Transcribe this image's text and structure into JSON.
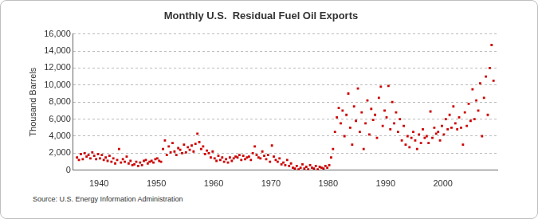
{
  "chart_data": {
    "type": "scatter",
    "title": "Monthly U.S.  Residual Fuel Oil Exports",
    "y_label": "Thousand Barrels",
    "source": "Source: U.S. Energy Information Administration",
    "color": "#cc0000",
    "marker": "square",
    "grid": true,
    "xlim": [
      1935.5,
      2009.5
    ],
    "xticks": [
      1940,
      1950,
      1960,
      1970,
      1980,
      1990,
      2000
    ],
    "ylim": [
      0,
      16000
    ],
    "yticks": [
      0,
      {
        "value": 2000,
        "label": "2,000"
      },
      {
        "value": 4000,
        "label": "4,000"
      },
      {
        "value": 6000,
        "label": "6,000"
      },
      {
        "value": 8000,
        "label": "8,000"
      },
      {
        "value": 10000,
        "label": "10,000"
      },
      {
        "value": 12000,
        "label": "12,000"
      },
      {
        "value": 14000,
        "label": "14,000"
      },
      {
        "value": 16000,
        "label": "16,000"
      }
    ],
    "x": [
      1936.17,
      1936.5,
      1936.83,
      1937.17,
      1937.5,
      1937.83,
      1938.17,
      1938.5,
      1938.83,
      1939.17,
      1939.5,
      1939.83,
      1940.17,
      1940.5,
      1940.83,
      1941.17,
      1941.5,
      1941.83,
      1942.17,
      1942.5,
      1942.83,
      1943.17,
      1943.5,
      1943.83,
      1944.17,
      1944.5,
      1944.83,
      1945.17,
      1945.5,
      1945.83,
      1946.17,
      1946.5,
      1946.83,
      1947.17,
      1947.5,
      1947.83,
      1948.17,
      1948.5,
      1948.83,
      1949.17,
      1949.5,
      1949.83,
      1950.17,
      1950.5,
      1950.83,
      1951.17,
      1951.5,
      1951.83,
      1952.17,
      1952.5,
      1952.83,
      1953.17,
      1953.5,
      1953.83,
      1954.17,
      1954.5,
      1954.83,
      1955.17,
      1955.5,
      1955.83,
      1956.17,
      1956.5,
      1956.83,
      1957.17,
      1957.5,
      1957.83,
      1958.17,
      1958.5,
      1958.83,
      1959.17,
      1959.5,
      1959.83,
      1960.17,
      1960.5,
      1960.83,
      1961.17,
      1961.5,
      1961.83,
      1962.17,
      1962.5,
      1962.83,
      1963.17,
      1963.5,
      1963.83,
      1964.17,
      1964.5,
      1964.83,
      1965.17,
      1965.5,
      1965.83,
      1966.17,
      1966.5,
      1966.83,
      1967.17,
      1967.5,
      1967.83,
      1968.17,
      1968.5,
      1968.83,
      1969.17,
      1969.5,
      1969.83,
      1970.17,
      1970.5,
      1970.83,
      1971.17,
      1971.5,
      1971.83,
      1972.17,
      1972.5,
      1972.83,
      1973.17,
      1973.5,
      1973.83,
      1974.17,
      1974.5,
      1974.83,
      1975.17,
      1975.5,
      1975.83,
      1976.17,
      1976.5,
      1976.83,
      1977.17,
      1977.5,
      1977.83,
      1978.17,
      1978.5,
      1978.83,
      1979.17,
      1979.5,
      1979.83,
      1980.17,
      1980.5,
      1980.83,
      1981.17,
      1981.5,
      1981.83,
      1982.17,
      1982.5,
      1982.83,
      1983.17,
      1983.5,
      1983.83,
      1984.17,
      1984.5,
      1984.83,
      1985.17,
      1985.5,
      1985.83,
      1986.17,
      1986.5,
      1986.83,
      1987.17,
      1987.5,
      1987.83,
      1988.17,
      1988.5,
      1988.83,
      1989.17,
      1989.5,
      1989.83,
      1990.17,
      1990.5,
      1990.83,
      1991.17,
      1991.5,
      1991.83,
      1992.17,
      1992.5,
      1992.83,
      1993.17,
      1993.5,
      1993.83,
      1994.17,
      1994.5,
      1994.83,
      1995.17,
      1995.5,
      1995.83,
      1996.17,
      1996.5,
      1996.83,
      1997.17,
      1997.5,
      1997.83,
      1998.17,
      1998.5,
      1998.83,
      1999.17,
      1999.5,
      1999.83,
      2000.17,
      2000.5,
      2000.83,
      2001.17,
      2001.5,
      2001.83,
      2002.17,
      2002.5,
      2002.83,
      2003.17,
      2003.5,
      2003.83,
      2004.17,
      2004.5,
      2004.83,
      2005.17,
      2005.5,
      2005.83,
      2006.17,
      2006.5,
      2006.83,
      2007.17,
      2007.5,
      2007.83,
      2008.17,
      2008.5,
      2008.83
    ],
    "values": [
      1500,
      1200,
      1900,
      1300,
      2000,
      1600,
      1800,
      1400,
      2100,
      1700,
      1300,
      1900,
      1400,
      1800,
      1200,
      1500,
      1100,
      1700,
      1000,
      1400,
      800,
      1200,
      2500,
      900,
      1300,
      1000,
      1600,
      800,
      1100,
      600,
      700,
      1000,
      500,
      900,
      600,
      1100,
      1200,
      800,
      1000,
      1100,
      900,
      1300,
      1400,
      1100,
      1000,
      2500,
      3500,
      1800,
      2800,
      2100,
      3200,
      2200,
      1800,
      2600,
      2400,
      2000,
      3000,
      2100,
      2700,
      2400,
      2900,
      2200,
      3100,
      4300,
      3300,
      2500,
      2800,
      1900,
      2300,
      2000,
      1500,
      2200,
      1400,
      1100,
      1700,
      1200,
      1500,
      1000,
      1300,
      900,
      1500,
      1100,
      1400,
      1600,
      1500,
      1800,
      1200,
      1700,
      1300,
      1500,
      1600,
      1200,
      2000,
      2800,
      1800,
      1500,
      1400,
      2200,
      1700,
      1300,
      1800,
      1000,
      2900,
      1600,
      1200,
      1000,
      1400,
      700,
      900,
      600,
      1200,
      500,
      800,
      300,
      200,
      500,
      100,
      300,
      700,
      200,
      400,
      100,
      600,
      300,
      200,
      500,
      100,
      400,
      300,
      200,
      500,
      300,
      600,
      1500,
      2500,
      4500,
      6200,
      7300,
      5500,
      7000,
      4000,
      6500,
      9000,
      5000,
      3000,
      7500,
      5800,
      9600,
      4500,
      6800,
      2500,
      5500,
      8200,
      4200,
      7200,
      5900,
      6500,
      3800,
      8500,
      9800,
      5200,
      7000,
      6200,
      9900,
      4800,
      8000,
      5500,
      6800,
      4500,
      6000,
      3500,
      5200,
      3000,
      4000,
      2700,
      3800,
      4500,
      3500,
      2500,
      4200,
      3200,
      4800,
      3800,
      4000,
      3200,
      6900,
      3800,
      5000,
      4300,
      4500,
      3500,
      5200,
      4200,
      6000,
      4800,
      6500,
      5000,
      7500,
      5500,
      4800,
      6200,
      5000,
      3000,
      6800,
      5200,
      7800,
      5800,
      9500,
      6000,
      8200,
      7000,
      10200,
      4000,
      8500,
      11000,
      6500,
      12000,
      14700,
      10500
    ]
  }
}
